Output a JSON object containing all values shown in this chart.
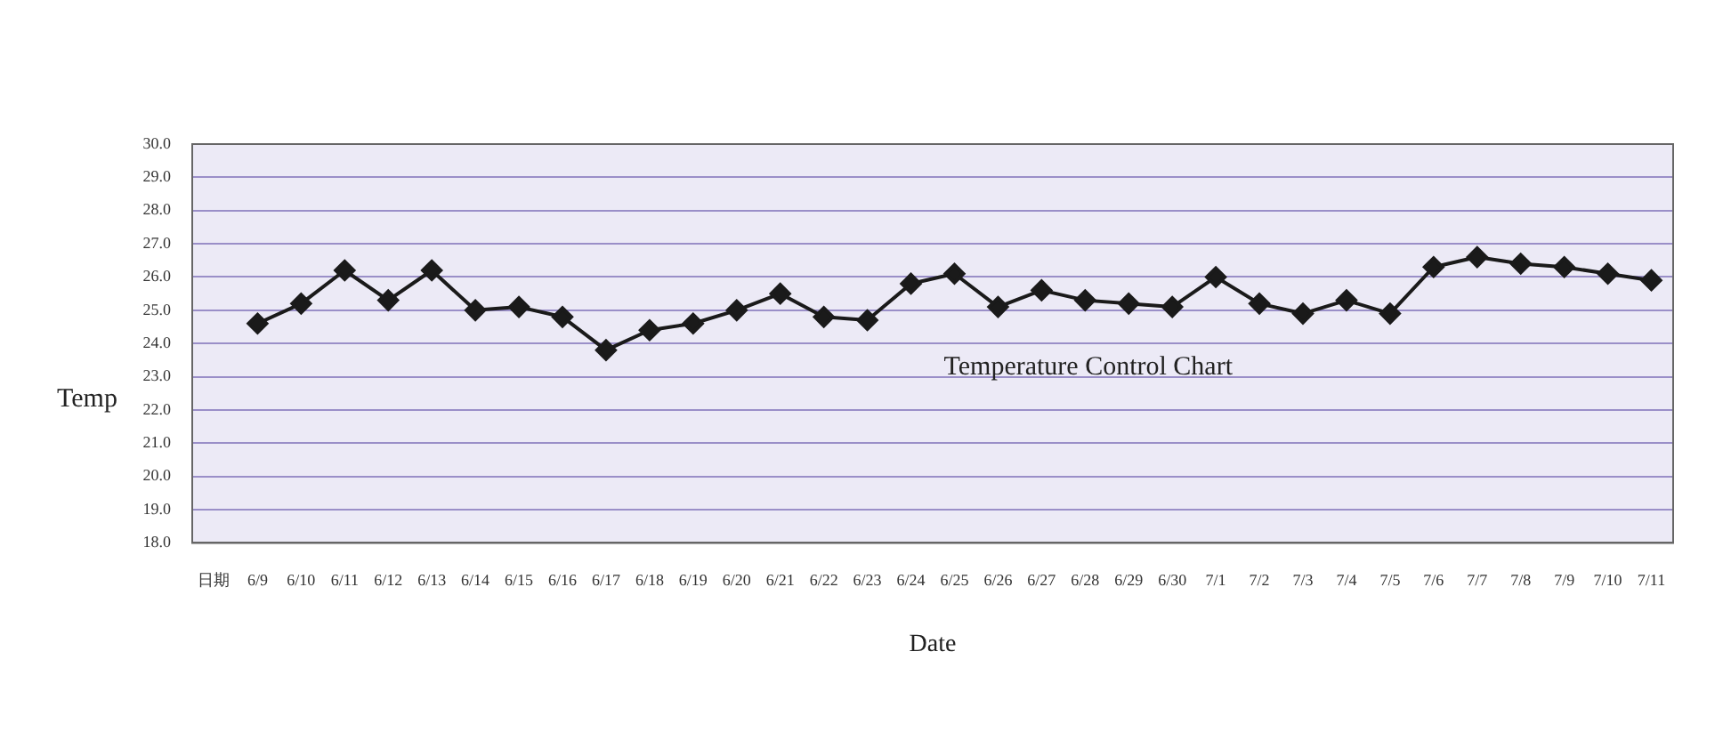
{
  "chart_data": {
    "type": "line",
    "title": "Temperature Control Chart",
    "xlabel": "Date",
    "ylabel": "Temp",
    "categories": [
      "日期",
      "6/9",
      "6/10",
      "6/11",
      "6/12",
      "6/13",
      "6/14",
      "6/15",
      "6/16",
      "6/17",
      "6/18",
      "6/19",
      "6/20",
      "6/21",
      "6/22",
      "6/23",
      "6/24",
      "6/25",
      "6/26",
      "6/27",
      "6/28",
      "6/29",
      "6/30",
      "7/1",
      "7/2",
      "7/3",
      "7/4",
      "7/5",
      "7/6",
      "7/7",
      "7/8",
      "7/9",
      "7/10",
      "7/11"
    ],
    "series": [
      {
        "color": "#1a1a1a",
        "values": [
          null,
          24.6,
          25.2,
          26.2,
          25.3,
          26.2,
          25.0,
          25.1,
          24.8,
          23.8,
          24.4,
          24.6,
          25.0,
          25.5,
          24.8,
          24.7,
          25.8,
          26.1,
          25.1,
          25.6,
          25.3,
          25.2,
          25.1,
          26.0,
          25.2,
          24.9,
          25.3,
          24.9,
          26.3,
          26.6,
          26.4,
          26.3,
          26.1,
          25.9
        ]
      }
    ],
    "ylim": [
      18,
      30
    ],
    "yticks": [
      {
        "value": 18,
        "label": "18.0"
      },
      {
        "value": 19,
        "label": "19.0"
      },
      {
        "value": 20,
        "label": "20.0"
      },
      {
        "value": 21,
        "label": "21.0"
      },
      {
        "value": 22,
        "label": "22.0"
      },
      {
        "value": 23,
        "label": "23.0"
      },
      {
        "value": 24,
        "label": "24.0"
      },
      {
        "value": 25,
        "label": "25.0"
      },
      {
        "value": 26,
        "label": "26.0"
      },
      {
        "value": 27,
        "label": "27.0"
      },
      {
        "value": 28,
        "label": "28.0"
      },
      {
        "value": 29,
        "label": "29.0"
      },
      {
        "value": 30,
        "label": "30.0"
      }
    ],
    "grid": "y",
    "legend": false,
    "marker": "diamond",
    "line_style": "solid"
  }
}
